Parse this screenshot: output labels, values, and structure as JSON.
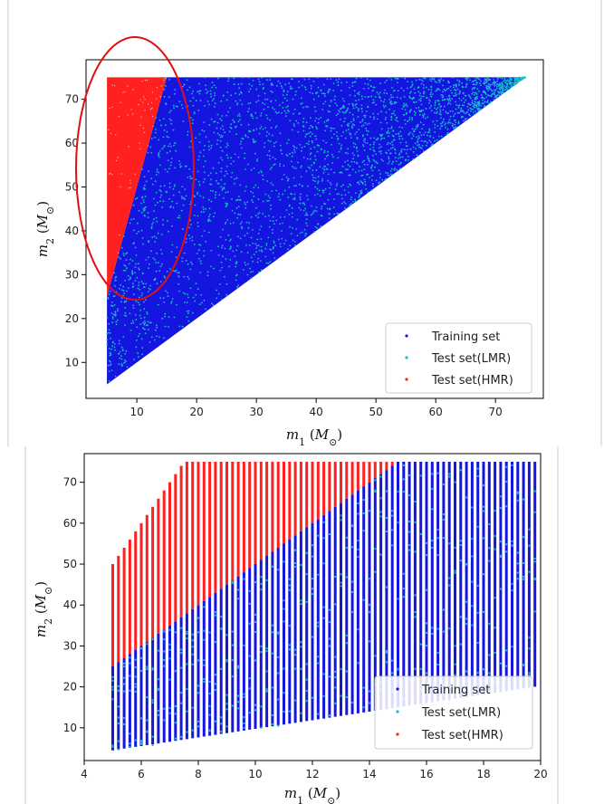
{
  "chart_data": [
    {
      "type": "scatter",
      "xlabel": "m_1 (M_⊙)",
      "ylabel": "m_2 (M_⊙)",
      "xlim": [
        1.5,
        78
      ],
      "ylim": [
        1.8,
        79
      ],
      "xticks": [
        "10",
        "20",
        "30",
        "40",
        "50",
        "60",
        "70"
      ],
      "yticks": [
        "10",
        "20",
        "30",
        "40",
        "50",
        "60",
        "70"
      ],
      "legend_position": "bottom-right",
      "series": [
        {
          "name": "Training set",
          "color": "#1515e0",
          "region": "triangle m1 5-75, m2 from m1 to 75 (excluding HMR wedge)"
        },
        {
          "name": "Test set(LMR)",
          "color": "#17c0c8",
          "region": "scattered inside training region"
        },
        {
          "name": "Test set(HMR)",
          "color": "#ff2020",
          "region": "wedge: m1 5-15, m2 between 5*m1 and 75 (above 25)"
        }
      ],
      "annotation": {
        "type": "ellipse",
        "color": "#e01010",
        "center": [
          10,
          50
        ],
        "note": "highlights HMR region"
      }
    },
    {
      "type": "scatter",
      "xlabel": "m_1 (M_⊙)",
      "ylabel": "m_2 (M_⊙)",
      "xlim": [
        4,
        20
      ],
      "ylim": [
        2,
        77
      ],
      "xticks": [
        "4",
        "6",
        "8",
        "10",
        "12",
        "14",
        "16",
        "18",
        "20"
      ],
      "yticks": [
        "10",
        "20",
        "30",
        "40",
        "50",
        "60",
        "70"
      ],
      "legend_position": "bottom-right",
      "series": [
        {
          "name": "Training set",
          "color": "#1515e0",
          "region": "vertical strips at m1 = 5.0, 5.2, ... 20; m2 from ~m1 to min(5*m1,75)"
        },
        {
          "name": "Test set(LMR)",
          "color": "#17c0c8",
          "region": "scattered on training strips"
        },
        {
          "name": "Test set(HMR)",
          "color": "#ff2020",
          "region": "strips at m1 5-15; m2 from 5*m1 to min(10*m1,75)"
        }
      ]
    }
  ]
}
